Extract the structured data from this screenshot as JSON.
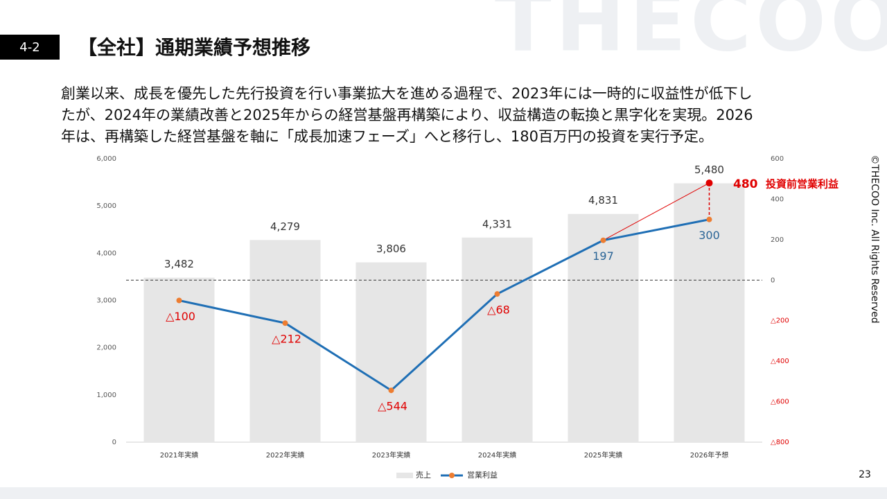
{
  "section": "4-2",
  "title": "【全社】通期業績予想推移",
  "body_lines": [
    "創業以来、成長を優先した先行投資を行い事業拡大を進める過程で、2023年には一時的に収益性が低下し",
    "たが、2024年の業績改善と2025年からの経営基盤再構築により、収益構造の転換と黒字化を実現。2026",
    "年は、再構築した経営基盤を軸に「成長加速フェーズ」へと移行し、180百万円の投資を実行予定。"
  ],
  "watermark": "THECOO",
  "copyright": "©THECOO Inc. All Rights Reserved",
  "page_number": "23",
  "chart_data": {
    "type": "bar-line",
    "categories": [
      "2021年実績",
      "2022年実績",
      "2023年実績",
      "2024年実績",
      "2025年実績",
      "2026年予想"
    ],
    "series": [
      {
        "name": "売上",
        "type": "bar",
        "color": "#e6e6e6",
        "values": [
          3482,
          4279,
          3806,
          4331,
          4831,
          5480
        ],
        "value_labels": [
          "3,482",
          "4,279",
          "3,806",
          "4,331",
          "4,831",
          "5,480"
        ]
      },
      {
        "name": "営業利益",
        "type": "line",
        "axis": "y2",
        "color": "#1f6fb5",
        "marker_color": "#ed7d31",
        "values": [
          -100,
          -212,
          -544,
          -68,
          197,
          300
        ],
        "value_labels": [
          "△100",
          "△212",
          "△544",
          "△68",
          "197",
          "300"
        ]
      }
    ],
    "ylim": [
      0,
      6000
    ],
    "yticks": [
      0,
      {
        "value": 1000,
        "label": "1,000"
      },
      {
        "value": 2000,
        "label": "2,000"
      },
      {
        "value": 3000,
        "label": "3,000"
      },
      {
        "value": 4000,
        "label": "4,000"
      },
      {
        "value": 5000,
        "label": "5,000"
      },
      {
        "value": 6000,
        "label": "6,000"
      }
    ],
    "y2lim": [
      -800,
      600
    ],
    "y2ticks": [
      {
        "value": -800,
        "label": "△800"
      },
      {
        "value": -600,
        "label": "△600"
      },
      {
        "value": -400,
        "label": "△400"
      },
      {
        "value": -200,
        "label": "△200"
      },
      0,
      200,
      400,
      600
    ],
    "annotation": {
      "value": 480,
      "text": "投資前営業利益",
      "color": "#e00000"
    },
    "legend": "bottom"
  }
}
